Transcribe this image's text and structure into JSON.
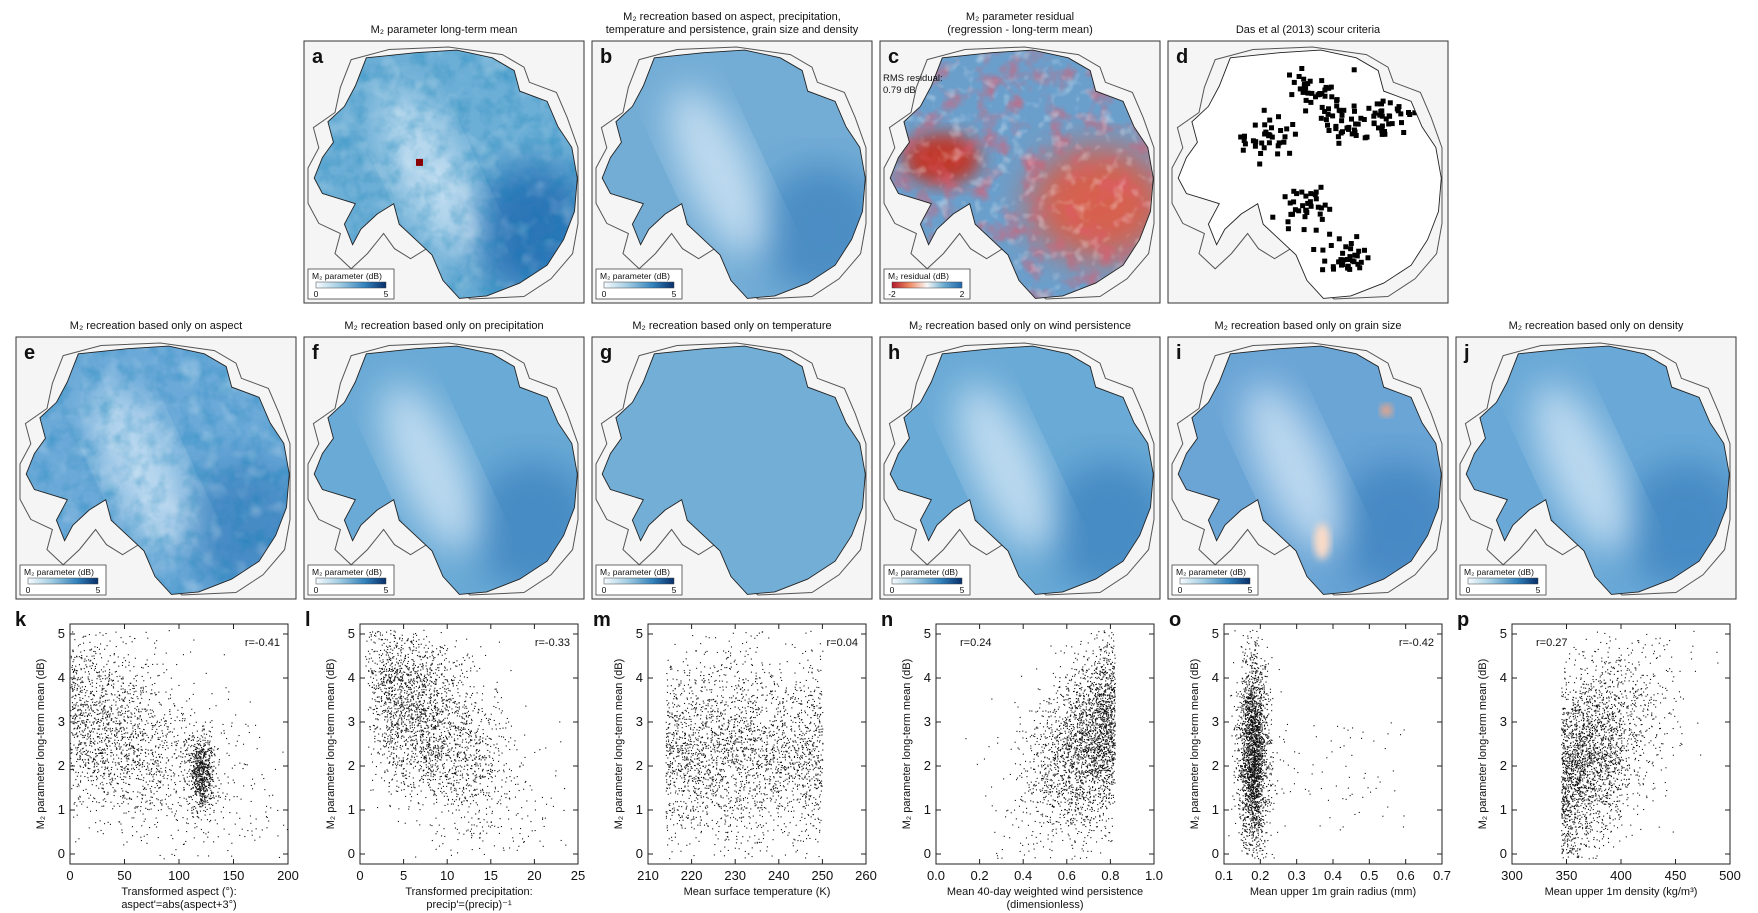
{
  "figure": {
    "maps_row1": [
      {
        "letter": "a",
        "title_lines": [
          "M₂ parameter long-term mean"
        ],
        "colorbar": {
          "label": "M₂ parameter (dB)",
          "min": "0",
          "max": "5",
          "scheme": "blue"
        },
        "kind": "mean"
      },
      {
        "letter": "b",
        "title_lines": [
          "M₂ recreation based on aspect, precipitation,",
          "temperature and persistence, grain size and density"
        ],
        "colorbar": {
          "label": "M₂ parameter (dB)",
          "min": "0",
          "max": "5",
          "scheme": "blue"
        },
        "kind": "regression"
      },
      {
        "letter": "c",
        "title_lines": [
          "M₂ parameter residual",
          "(regression - long-term mean)"
        ],
        "colorbar": {
          "label": "M₂ residual (dB)",
          "min": "-2",
          "max": "2",
          "scheme": "diverging"
        },
        "kind": "residual",
        "annotation_lines": [
          "RMS residual:",
          "0.79 dB"
        ]
      },
      {
        "letter": "d",
        "title_lines": [
          "Das et al (2013) scour criteria"
        ],
        "colorbar": null,
        "kind": "scour"
      }
    ],
    "maps_row2": [
      {
        "letter": "e",
        "title_lines": [
          "M₂ recreation based only on aspect"
        ],
        "colorbar": {
          "label": "M₂ parameter (dB)",
          "min": "0",
          "max": "5",
          "scheme": "blue"
        },
        "kind": "aspect"
      },
      {
        "letter": "f",
        "title_lines": [
          "M₂ recreation based only on precipitation"
        ],
        "colorbar": {
          "label": "M₂ parameter (dB)",
          "min": "0",
          "max": "5",
          "scheme": "blue"
        },
        "kind": "precip"
      },
      {
        "letter": "g",
        "title_lines": [
          "M₂ recreation based only on temperature"
        ],
        "colorbar": {
          "label": "M₂ parameter (dB)",
          "min": "0",
          "max": "5",
          "scheme": "blue"
        },
        "kind": "temp"
      },
      {
        "letter": "h",
        "title_lines": [
          "M₂ recreation based only on wind persistence"
        ],
        "colorbar": {
          "label": "M₂ parameter (dB)",
          "min": "0",
          "max": "5",
          "scheme": "blue"
        },
        "kind": "wind"
      },
      {
        "letter": "i",
        "title_lines": [
          "M₂ recreation based only on grain size"
        ],
        "colorbar": {
          "label": "M₂ parameter (dB)",
          "min": "0",
          "max": "5",
          "scheme": "blue"
        },
        "kind": "grain"
      },
      {
        "letter": "j",
        "title_lines": [
          "M₂ recreation based only on density"
        ],
        "colorbar": {
          "label": "M₂ parameter (dB)",
          "min": "0",
          "max": "5",
          "scheme": "blue"
        },
        "kind": "density"
      }
    ],
    "colors": {
      "blue_light": "#f0f6fb",
      "blue_dark": "#08306b",
      "red_dark": "#b2182b",
      "white": "#f7f7f7",
      "land_bg": "#f4f5f4",
      "outline": "#333333",
      "point": "#111111"
    }
  },
  "chart_data": [
    {
      "letter": "k",
      "type": "scatter",
      "xlabel_lines": [
        "Transformed aspect (°):",
        "aspect'=abs(aspect+3°)"
      ],
      "ylabel": "M₂ parameter long-term mean (dB)",
      "xlim": [
        0,
        200
      ],
      "ylim": [
        0,
        5
      ],
      "xticks": [
        "0",
        "50",
        "100",
        "150",
        "200"
      ],
      "yticks": [
        "0",
        "1",
        "2",
        "3",
        "4",
        "5"
      ],
      "r": "r=-0.41",
      "r_pos": "top-right",
      "n_points": 2600,
      "cluster": {
        "x_center": 120,
        "y_center": 1.9,
        "note": "dense cluster"
      }
    },
    {
      "letter": "l",
      "type": "scatter",
      "xlabel_lines": [
        "Transformed precipitation:",
        "precip'=(precip)⁻¹"
      ],
      "ylabel": "M₂ parameter long-term mean (dB)",
      "xlim": [
        0,
        25
      ],
      "ylim": [
        0,
        5
      ],
      "xticks": [
        "0",
        "5",
        "10",
        "15",
        "20",
        "25"
      ],
      "yticks": [
        "0",
        "1",
        "2",
        "3",
        "4",
        "5"
      ],
      "r": "r=-0.33",
      "r_pos": "top-right",
      "n_points": 2600
    },
    {
      "letter": "m",
      "type": "scatter",
      "xlabel_lines": [
        "Mean surface temperature (K)"
      ],
      "ylabel": "M₂ parameter long-term mean (dB)",
      "xlim": [
        210,
        260
      ],
      "ylim": [
        0,
        5
      ],
      "xticks": [
        "210",
        "220",
        "230",
        "240",
        "250",
        "260"
      ],
      "yticks": [
        "0",
        "1",
        "2",
        "3",
        "4",
        "5"
      ],
      "r": "r=0.04",
      "r_pos": "top-right",
      "n_points": 2600
    },
    {
      "letter": "n",
      "type": "scatter",
      "xlabel_lines": [
        "Mean 40-day weighted wind persistence",
        "(dimensionless)"
      ],
      "ylabel": "M₂ parameter long-term mean (dB)",
      "xlim": [
        0,
        1
      ],
      "ylim": [
        0,
        5
      ],
      "xticks": [
        "0.0",
        "0.2",
        "0.4",
        "0.6",
        "0.8",
        "1.0"
      ],
      "yticks": [
        "0",
        "1",
        "2",
        "3",
        "4",
        "5"
      ],
      "r": "r=0.24",
      "r_pos": "top-left",
      "n_points": 2600
    },
    {
      "letter": "o",
      "type": "scatter",
      "xlabel_lines": [
        "Mean upper 1m grain radius (mm)"
      ],
      "ylabel": "M₂ parameter long-term mean (dB)",
      "xlim": [
        0.1,
        0.7
      ],
      "ylim": [
        0,
        5
      ],
      "xticks": [
        "0.1",
        "0.2",
        "0.3",
        "0.4",
        "0.5",
        "0.6",
        "0.7"
      ],
      "yticks": [
        "0",
        "1",
        "2",
        "3",
        "4",
        "5"
      ],
      "r": "r=-0.42",
      "r_pos": "top-right",
      "n_points": 2600
    },
    {
      "letter": "p",
      "type": "scatter",
      "xlabel_lines": [
        "Mean upper 1m density (kg/m³)"
      ],
      "ylabel": "M₂ parameter long-term mean (dB)",
      "xlim": [
        300,
        500
      ],
      "ylim": [
        0,
        5
      ],
      "xticks": [
        "300",
        "350",
        "400",
        "450",
        "500"
      ],
      "yticks": [
        "0",
        "1",
        "2",
        "3",
        "4",
        "5"
      ],
      "r": "r=0.27",
      "r_pos": "top-left",
      "n_points": 2600
    }
  ]
}
